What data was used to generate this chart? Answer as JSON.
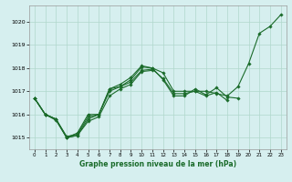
{
  "bg_color": "#d6efef",
  "grid_color": "#b0d8cc",
  "line_color": "#1a6b2a",
  "marker_color": "#1a6b2a",
  "xlabel": "Graphe pression niveau de la mer (hPa)",
  "ylim": [
    1014.5,
    1020.7
  ],
  "xlim": [
    -0.5,
    23.5
  ],
  "yticks": [
    1015,
    1016,
    1017,
    1018,
    1019,
    1020
  ],
  "xticks": [
    0,
    1,
    2,
    3,
    4,
    5,
    6,
    7,
    8,
    9,
    10,
    11,
    12,
    13,
    14,
    15,
    16,
    17,
    18,
    19,
    20,
    21,
    22,
    23
  ],
  "series": [
    [
      1016.7,
      1016.0,
      1015.8,
      1015.0,
      1015.1,
      1015.8,
      1016.0,
      1017.1,
      1017.3,
      1017.6,
      1018.1,
      1018.0,
      1017.8,
      1017.0,
      1017.0,
      1017.0,
      1017.0,
      1016.9,
      1016.8,
      1017.2,
      1018.2,
      1019.5,
      1019.8,
      1020.3
    ],
    [
      1016.7,
      1016.0,
      1015.8,
      1015.0,
      1015.2,
      1016.0,
      1016.0,
      1017.1,
      1017.2,
      1017.5,
      1018.05,
      1018.0,
      1017.5,
      1016.8,
      1016.8,
      1017.1,
      1016.85,
      1017.15,
      1016.75,
      1016.7,
      null,
      null,
      null,
      null
    ],
    [
      1016.7,
      1016.0,
      1015.8,
      1015.05,
      1015.15,
      1015.9,
      1016.0,
      1017.0,
      1017.2,
      1017.4,
      1017.9,
      1017.95,
      1017.55,
      1016.9,
      1016.9,
      1017.0,
      1016.8,
      1016.95,
      1016.6,
      null,
      null,
      null,
      null,
      null
    ],
    [
      1016.7,
      1016.0,
      1015.75,
      1015.0,
      1015.1,
      1015.7,
      1015.9,
      1016.8,
      1017.1,
      1017.3,
      1017.85,
      1017.9,
      null,
      null,
      null,
      null,
      null,
      null,
      null,
      null,
      null,
      null,
      null,
      null
    ]
  ]
}
